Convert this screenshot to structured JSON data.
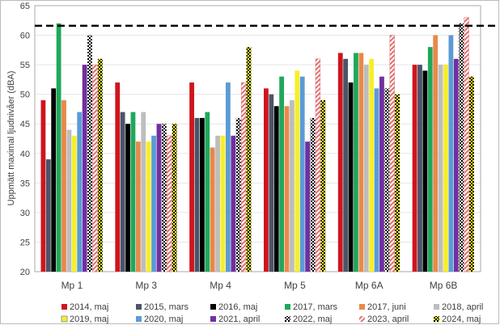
{
  "chart_data": {
    "type": "bar",
    "title": "",
    "xlabel": "",
    "ylabel": "Uppmätt maximal ljudnivåer (dBA)",
    "ylim": [
      20,
      65
    ],
    "yticks": [
      20,
      25,
      30,
      35,
      40,
      45,
      50,
      55,
      60,
      65
    ],
    "grid": true,
    "legend_position": "bottom",
    "reference_line": {
      "value": 61.6,
      "style": "dashed",
      "color": "#000000"
    },
    "categories": [
      "Mp 1",
      "Mp 3",
      "Mp 4",
      "Mp 5",
      "Mp 6A",
      "Mp 6B"
    ],
    "series": [
      {
        "name": "2014, maj",
        "color": "#d0141c",
        "pattern": "solid",
        "values": [
          49,
          52,
          52,
          51,
          57,
          55
        ]
      },
      {
        "name": "2015, mars",
        "color": "#4a5568",
        "pattern": "solid",
        "values": [
          39,
          47,
          46,
          50,
          56,
          55
        ]
      },
      {
        "name": "2016, maj",
        "color": "#000000",
        "pattern": "solid",
        "values": [
          51,
          45,
          46,
          48,
          52,
          54
        ]
      },
      {
        "name": "2017, mars",
        "color": "#1fa85a",
        "pattern": "solid",
        "values": [
          62,
          47,
          47,
          53,
          57,
          58
        ]
      },
      {
        "name": "2017, juni",
        "color": "#e8894a",
        "pattern": "solid",
        "values": [
          49,
          42,
          41,
          48,
          57,
          60
        ]
      },
      {
        "name": "2018, april",
        "color": "#bdbdbd",
        "pattern": "solid",
        "values": [
          44,
          47,
          43,
          49,
          55,
          55
        ]
      },
      {
        "name": "2019, maj",
        "color": "#f5ef2a",
        "pattern": "solid",
        "values": [
          43,
          42,
          43,
          54,
          56,
          55
        ]
      },
      {
        "name": "2020, maj",
        "color": "#5b9bd5",
        "pattern": "solid",
        "values": [
          47,
          43,
          52,
          53,
          51,
          60
        ]
      },
      {
        "name": "2021, april",
        "color": "#7030a0",
        "pattern": "solid",
        "values": [
          55,
          45,
          43,
          42,
          53,
          56
        ]
      },
      {
        "name": "2022, maj",
        "color": "#000000",
        "pattern": "checker-white",
        "values": [
          60,
          45,
          46,
          46,
          51,
          62
        ]
      },
      {
        "name": "2023, april",
        "color": "#e07070",
        "pattern": "stripes",
        "values": [
          55,
          43,
          52,
          56,
          60,
          63
        ]
      },
      {
        "name": "2024, maj",
        "color": "#000000",
        "pattern": "checker-yellow",
        "values": [
          56,
          45,
          58,
          49,
          50,
          53
        ]
      }
    ]
  }
}
